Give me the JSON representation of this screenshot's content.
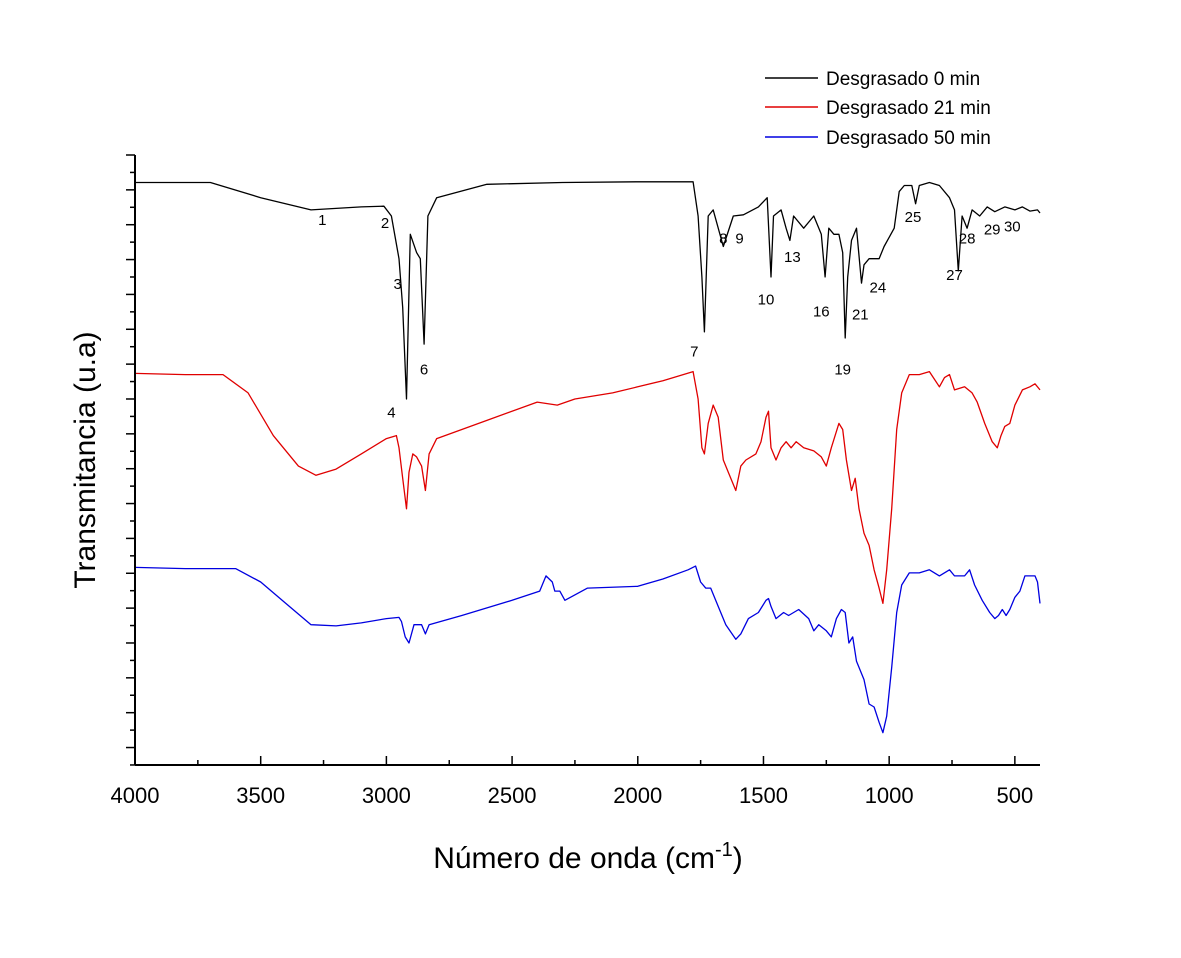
{
  "chart_data": {
    "type": "line",
    "title": "",
    "xlabel": "Número de onda (cm",
    "xlabel_sup": "-1",
    "xlabel_close": ")",
    "ylabel": "Transmitancia (u.a)",
    "xlim": [
      4000,
      400
    ],
    "ylim": [
      0,
      100
    ],
    "x_reversed": true,
    "xticks": [
      4000,
      3500,
      3000,
      2500,
      2000,
      1500,
      1000,
      500
    ],
    "xtick_labels": [
      "4000",
      "3500",
      "3000",
      "2500",
      "2000",
      "1500",
      "1000",
      "500"
    ],
    "y_tick_labels_shown": false,
    "legend_position": "top-right",
    "series": [
      {
        "name": "Desgrasado 0 min",
        "color": "#000000",
        "points": [
          [
            4000,
            95.5
          ],
          [
            3700,
            95.5
          ],
          [
            3500,
            93
          ],
          [
            3300,
            91
          ],
          [
            3100,
            91.5
          ],
          [
            3010,
            91.6
          ],
          [
            2980,
            90
          ],
          [
            2950,
            83
          ],
          [
            2935,
            75
          ],
          [
            2920,
            60
          ],
          [
            2905,
            87
          ],
          [
            2880,
            84
          ],
          [
            2865,
            83
          ],
          [
            2850,
            69
          ],
          [
            2835,
            90
          ],
          [
            2800,
            93
          ],
          [
            2600,
            95.2
          ],
          [
            2300,
            95.5
          ],
          [
            2000,
            95.6
          ],
          [
            1780,
            95.6
          ],
          [
            1760,
            90
          ],
          [
            1745,
            80
          ],
          [
            1735,
            71
          ],
          [
            1720,
            90
          ],
          [
            1700,
            91
          ],
          [
            1660,
            85
          ],
          [
            1620,
            90
          ],
          [
            1580,
            90.2
          ],
          [
            1520,
            91.5
          ],
          [
            1485,
            93
          ],
          [
            1470,
            80
          ],
          [
            1460,
            90
          ],
          [
            1430,
            91
          ],
          [
            1410,
            88
          ],
          [
            1395,
            86
          ],
          [
            1380,
            90
          ],
          [
            1340,
            88
          ],
          [
            1300,
            90
          ],
          [
            1270,
            87
          ],
          [
            1255,
            80
          ],
          [
            1240,
            88
          ],
          [
            1220,
            87
          ],
          [
            1200,
            87
          ],
          [
            1185,
            84
          ],
          [
            1175,
            70
          ],
          [
            1165,
            80
          ],
          [
            1150,
            86
          ],
          [
            1130,
            88
          ],
          [
            1110,
            79
          ],
          [
            1100,
            82
          ],
          [
            1080,
            83
          ],
          [
            1060,
            83
          ],
          [
            1040,
            83
          ],
          [
            1020,
            85
          ],
          [
            980,
            88
          ],
          [
            960,
            94
          ],
          [
            940,
            95
          ],
          [
            910,
            95
          ],
          [
            895,
            92
          ],
          [
            880,
            95
          ],
          [
            840,
            95.5
          ],
          [
            800,
            95
          ],
          [
            760,
            93
          ],
          [
            740,
            91
          ],
          [
            725,
            81
          ],
          [
            710,
            90
          ],
          [
            690,
            88
          ],
          [
            670,
            91
          ],
          [
            640,
            90
          ],
          [
            610,
            91.5
          ],
          [
            580,
            90.7
          ],
          [
            540,
            91.5
          ],
          [
            500,
            91
          ],
          [
            470,
            91.5
          ],
          [
            440,
            90.8
          ],
          [
            410,
            91
          ],
          [
            400,
            90.5
          ]
        ]
      },
      {
        "name": "Desgrasado 21 min",
        "color": "#e00000",
        "points": [
          [
            4000,
            64.2
          ],
          [
            3800,
            64
          ],
          [
            3650,
            64
          ],
          [
            3550,
            61
          ],
          [
            3450,
            54
          ],
          [
            3350,
            49
          ],
          [
            3280,
            47.5
          ],
          [
            3200,
            48.5
          ],
          [
            3100,
            51
          ],
          [
            3000,
            53.5
          ],
          [
            2960,
            54
          ],
          [
            2950,
            52
          ],
          [
            2935,
            47
          ],
          [
            2920,
            42
          ],
          [
            2910,
            48
          ],
          [
            2895,
            51
          ],
          [
            2880,
            50.5
          ],
          [
            2860,
            49
          ],
          [
            2845,
            45
          ],
          [
            2830,
            51
          ],
          [
            2800,
            53.5
          ],
          [
            2700,
            55
          ],
          [
            2600,
            56.5
          ],
          [
            2400,
            59.5
          ],
          [
            2320,
            59
          ],
          [
            2250,
            60
          ],
          [
            2100,
            61
          ],
          [
            2000,
            62
          ],
          [
            1900,
            63
          ],
          [
            1780,
            64.5
          ],
          [
            1760,
            60
          ],
          [
            1745,
            52
          ],
          [
            1735,
            51
          ],
          [
            1720,
            56
          ],
          [
            1700,
            59
          ],
          [
            1680,
            57
          ],
          [
            1660,
            50
          ],
          [
            1640,
            48
          ],
          [
            1610,
            45
          ],
          [
            1590,
            49
          ],
          [
            1570,
            50
          ],
          [
            1530,
            51
          ],
          [
            1510,
            53
          ],
          [
            1490,
            57
          ],
          [
            1480,
            58
          ],
          [
            1470,
            52
          ],
          [
            1450,
            50
          ],
          [
            1430,
            52
          ],
          [
            1410,
            53
          ],
          [
            1390,
            52
          ],
          [
            1370,
            53
          ],
          [
            1340,
            52
          ],
          [
            1300,
            51.5
          ],
          [
            1270,
            50.5
          ],
          [
            1250,
            49
          ],
          [
            1230,
            52
          ],
          [
            1200,
            56
          ],
          [
            1185,
            55
          ],
          [
            1170,
            50
          ],
          [
            1150,
            45
          ],
          [
            1135,
            47
          ],
          [
            1120,
            42
          ],
          [
            1100,
            38
          ],
          [
            1080,
            36
          ],
          [
            1060,
            32
          ],
          [
            1040,
            29
          ],
          [
            1025,
            26.5
          ],
          [
            1010,
            32
          ],
          [
            990,
            42
          ],
          [
            970,
            55
          ],
          [
            950,
            61
          ],
          [
            920,
            64
          ],
          [
            880,
            64
          ],
          [
            840,
            64.5
          ],
          [
            800,
            62
          ],
          [
            780,
            63.5
          ],
          [
            760,
            64
          ],
          [
            740,
            61.5
          ],
          [
            700,
            62
          ],
          [
            670,
            61
          ],
          [
            650,
            59.5
          ],
          [
            620,
            56
          ],
          [
            590,
            53
          ],
          [
            570,
            52
          ],
          [
            555,
            54
          ],
          [
            540,
            55.5
          ],
          [
            520,
            56
          ],
          [
            500,
            59
          ],
          [
            470,
            61.5
          ],
          [
            440,
            62
          ],
          [
            420,
            62.5
          ],
          [
            400,
            61.5
          ]
        ]
      },
      {
        "name": "Desgrasado 50 min",
        "color": "#0000e0",
        "points": [
          [
            4000,
            32.4
          ],
          [
            3800,
            32.2
          ],
          [
            3600,
            32.2
          ],
          [
            3500,
            30
          ],
          [
            3400,
            26.5
          ],
          [
            3300,
            23
          ],
          [
            3200,
            22.8
          ],
          [
            3100,
            23.3
          ],
          [
            3000,
            24
          ],
          [
            2950,
            24.2
          ],
          [
            2940,
            23.5
          ],
          [
            2925,
            21
          ],
          [
            2910,
            20
          ],
          [
            2890,
            23
          ],
          [
            2860,
            23
          ],
          [
            2845,
            21.5
          ],
          [
            2830,
            23
          ],
          [
            2700,
            24.5
          ],
          [
            2500,
            27
          ],
          [
            2390,
            28.5
          ],
          [
            2365,
            31
          ],
          [
            2340,
            30
          ],
          [
            2330,
            28.5
          ],
          [
            2310,
            28.5
          ],
          [
            2290,
            27
          ],
          [
            2200,
            29
          ],
          [
            2000,
            29.3
          ],
          [
            1900,
            30.5
          ],
          [
            1800,
            32
          ],
          [
            1770,
            32.6
          ],
          [
            1750,
            30
          ],
          [
            1730,
            29
          ],
          [
            1710,
            29
          ],
          [
            1680,
            26
          ],
          [
            1650,
            23
          ],
          [
            1610,
            20.6
          ],
          [
            1590,
            21.5
          ],
          [
            1560,
            24
          ],
          [
            1520,
            25
          ],
          [
            1490,
            27
          ],
          [
            1480,
            27.3
          ],
          [
            1470,
            26
          ],
          [
            1450,
            24
          ],
          [
            1420,
            25
          ],
          [
            1400,
            24.5
          ],
          [
            1360,
            25.5
          ],
          [
            1320,
            24
          ],
          [
            1300,
            22
          ],
          [
            1280,
            23
          ],
          [
            1250,
            22
          ],
          [
            1230,
            21
          ],
          [
            1210,
            24
          ],
          [
            1190,
            25.5
          ],
          [
            1175,
            25
          ],
          [
            1160,
            20
          ],
          [
            1145,
            21
          ],
          [
            1130,
            17
          ],
          [
            1100,
            14
          ],
          [
            1080,
            10
          ],
          [
            1060,
            9.5
          ],
          [
            1040,
            7
          ],
          [
            1025,
            5.3
          ],
          [
            1010,
            8
          ],
          [
            990,
            16
          ],
          [
            970,
            25
          ],
          [
            950,
            29.5
          ],
          [
            920,
            31.5
          ],
          [
            880,
            31.5
          ],
          [
            840,
            32
          ],
          [
            800,
            31
          ],
          [
            760,
            32
          ],
          [
            740,
            31
          ],
          [
            700,
            31
          ],
          [
            680,
            32
          ],
          [
            660,
            29.5
          ],
          [
            630,
            27
          ],
          [
            600,
            25
          ],
          [
            580,
            24
          ],
          [
            565,
            24.5
          ],
          [
            550,
            25.5
          ],
          [
            535,
            24.5
          ],
          [
            520,
            25.5
          ],
          [
            500,
            27.5
          ],
          [
            480,
            28.5
          ],
          [
            460,
            31
          ],
          [
            440,
            31
          ],
          [
            420,
            31
          ],
          [
            410,
            30
          ],
          [
            400,
            26.5
          ]
        ]
      }
    ],
    "peak_labels": [
      {
        "text": "1",
        "x": 3255,
        "y": 88.5
      },
      {
        "text": "2",
        "x": 3005,
        "y": 88
      },
      {
        "text": "3",
        "x": 2955,
        "y": 78
      },
      {
        "text": "4",
        "x": 2980,
        "y": 57
      },
      {
        "text": "6",
        "x": 2850,
        "y": 64
      },
      {
        "text": "7",
        "x": 1775,
        "y": 67
      },
      {
        "text": "8",
        "x": 1660,
        "y": 85.5
      },
      {
        "text": "9",
        "x": 1595,
        "y": 85.5
      },
      {
        "text": "10",
        "x": 1490,
        "y": 75.5
      },
      {
        "text": "13",
        "x": 1385,
        "y": 82.5
      },
      {
        "text": "16",
        "x": 1270,
        "y": 73.5
      },
      {
        "text": "19",
        "x": 1185,
        "y": 64
      },
      {
        "text": "21",
        "x": 1115,
        "y": 73
      },
      {
        "text": "24",
        "x": 1045,
        "y": 77.5
      },
      {
        "text": "25",
        "x": 905,
        "y": 89
      },
      {
        "text": "27",
        "x": 740,
        "y": 79.5
      },
      {
        "text": "28",
        "x": 690,
        "y": 85.5
      },
      {
        "text": "29",
        "x": 590,
        "y": 87
      },
      {
        "text": "30",
        "x": 510,
        "y": 87.5
      }
    ]
  }
}
